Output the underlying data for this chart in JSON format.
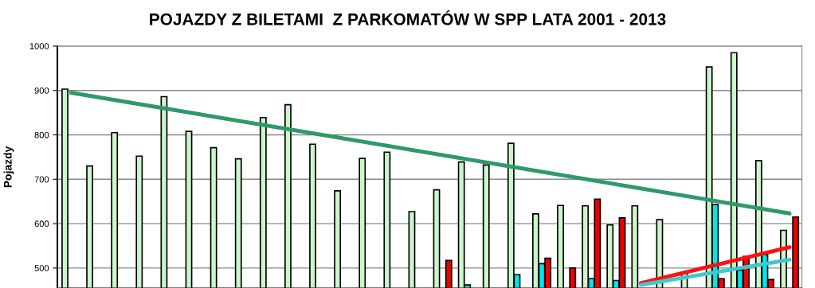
{
  "chart_data": {
    "type": "bar",
    "title": "POJAZDY Z BILETAMI  Z PARKOMATÓW W SPP LATA 2001 - 2013",
    "ylabel": "Pojazdy",
    "categories": [
      null,
      null,
      null,
      null,
      null,
      null,
      null,
      null,
      null,
      null,
      null,
      null,
      null,
      null,
      null,
      null,
      null,
      null,
      null,
      null,
      null,
      null,
      null,
      null,
      null,
      null,
      null,
      null,
      null,
      null
    ],
    "series": [
      {
        "color": "#ccf5cc",
        "values": [
          903,
          730,
          805,
          752,
          886,
          808,
          771,
          746,
          839,
          868,
          779,
          674,
          747,
          761,
          627,
          676,
          739,
          732,
          781,
          622,
          641,
          640,
          597,
          640,
          609,
          490,
          953,
          985,
          742,
          585
        ]
      },
      {
        "color": "#00e5ee",
        "values": [
          null,
          null,
          null,
          null,
          null,
          null,
          null,
          null,
          null,
          null,
          null,
          null,
          null,
          null,
          null,
          null,
          462,
          null,
          485,
          510,
          null,
          476,
          472,
          null,
          null,
          null,
          643,
          495,
          530,
          null
        ]
      },
      {
        "color": "#ee0000",
        "values": [
          null,
          null,
          null,
          null,
          null,
          null,
          null,
          null,
          null,
          null,
          null,
          null,
          null,
          null,
          null,
          517,
          null,
          null,
          null,
          522,
          500,
          655,
          613,
          null,
          null,
          null,
          476,
          526,
          474,
          615
        ]
      },
      {
        "type": "line",
        "color": "#2e9a6a",
        "values": [
          895,
          null,
          null,
          null,
          null,
          null,
          null,
          null,
          null,
          null,
          null,
          null,
          null,
          null,
          null,
          null,
          null,
          null,
          null,
          null,
          null,
          null,
          null,
          null,
          null,
          null,
          null,
          null,
          null,
          623
        ]
      },
      {
        "type": "line",
        "color": "#ff1010",
        "values": [
          null,
          null,
          null,
          null,
          null,
          null,
          null,
          null,
          null,
          null,
          null,
          null,
          null,
          null,
          null,
          null,
          null,
          null,
          null,
          null,
          null,
          null,
          null,
          466,
          null,
          null,
          null,
          null,
          null,
          547
        ]
      },
      {
        "type": "line",
        "color": "#40c8d0",
        "values": [
          null,
          null,
          null,
          null,
          null,
          null,
          null,
          null,
          null,
          null,
          null,
          null,
          null,
          null,
          null,
          null,
          null,
          null,
          null,
          null,
          null,
          null,
          null,
          462,
          null,
          null,
          null,
          null,
          null,
          519
        ]
      }
    ],
    "ylim": [
      455,
      1000
    ],
    "yticks": [
      500,
      600,
      700,
      800,
      900,
      1000
    ],
    "grid": "y",
    "legend": false
  }
}
